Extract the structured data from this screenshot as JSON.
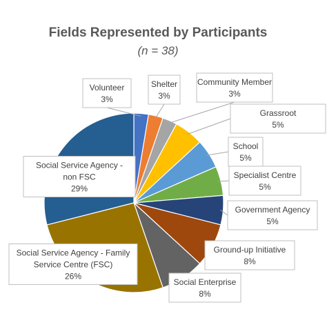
{
  "chart_data": {
    "type": "pie",
    "title": "Fields Represented by Participants",
    "subtitle": "(n = 38)",
    "slices": [
      {
        "label": [
          "Volunteer"
        ],
        "pct": "3%",
        "value": 1,
        "color": "#4472c4"
      },
      {
        "label": [
          "Shelter"
        ],
        "pct": "3%",
        "value": 1,
        "color": "#ed7d31"
      },
      {
        "label": [
          "Community Member"
        ],
        "pct": "3%",
        "value": 1,
        "color": "#a5a5a5"
      },
      {
        "label": [
          "Grassroot"
        ],
        "pct": "5%",
        "value": 2,
        "color": "#ffc000"
      },
      {
        "label": [
          "School"
        ],
        "pct": "5%",
        "value": 2,
        "color": "#5b9bd5"
      },
      {
        "label": [
          "Specialist Centre"
        ],
        "pct": "5%",
        "value": 2,
        "color": "#70ad47"
      },
      {
        "label": [
          "Government Agency"
        ],
        "pct": "5%",
        "value": 2,
        "color": "#264478"
      },
      {
        "label": [
          "Ground-up Initiative"
        ],
        "pct": "8%",
        "value": 3,
        "color": "#9e480e"
      },
      {
        "label": [
          "Social Enterprise"
        ],
        "pct": "8%",
        "value": 3,
        "color": "#636363"
      },
      {
        "label": [
          "Social Service Agency - Family",
          "Service Centre (FSC)"
        ],
        "pct": "26%",
        "value": 10,
        "color": "#997300"
      },
      {
        "label": [
          "Social Service Agency -",
          "non FSC"
        ],
        "pct": "29%",
        "value": 11,
        "color": "#255e91"
      }
    ],
    "legend": "none"
  }
}
